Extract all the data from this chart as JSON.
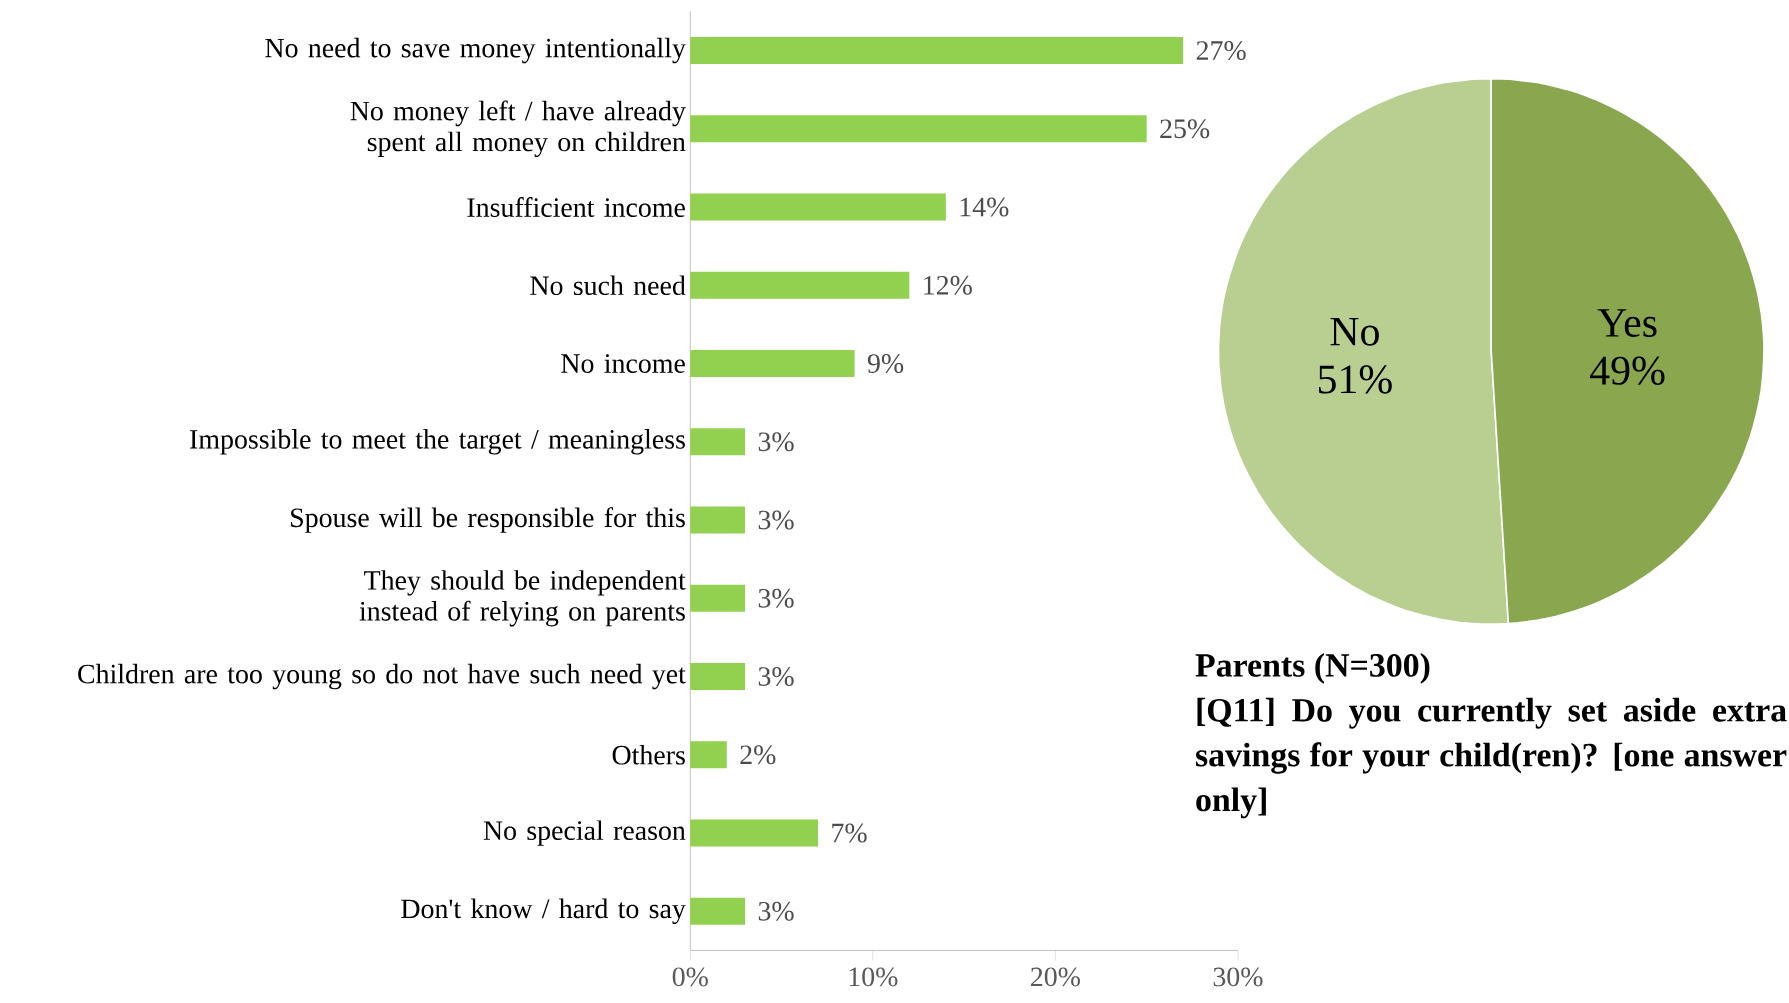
{
  "chart_data": [
    {
      "type": "bar",
      "orientation": "horizontal",
      "categories": [
        "No need to save money intentionally",
        "No money left / have already spent all money on children",
        "Insufficient income",
        "No such need",
        "No income",
        "Impossible to meet the target / meaningless",
        "Spouse will be responsible for this",
        "They should be independent instead of relying on parents",
        "Children are too young so do not have such need yet",
        "Others",
        "No special reason",
        "Don't know / hard to say"
      ],
      "values": [
        27,
        25,
        14,
        12,
        9,
        3,
        3,
        3,
        3,
        2,
        7,
        3
      ],
      "value_labels": [
        "27%",
        "25%",
        "14%",
        "12%",
        "9%",
        "3%",
        "3%",
        "3%",
        "3%",
        "2%",
        "7%",
        "3%"
      ],
      "color": "#92d050",
      "xlim": [
        0,
        30
      ],
      "xticks": [
        {
          "value": 0,
          "label": "0%"
        },
        {
          "value": 10,
          "label": "10%"
        },
        {
          "value": 20,
          "label": "20%"
        },
        {
          "value": 30,
          "label": "30%"
        }
      ]
    },
    {
      "type": "pie",
      "categories": [
        "No",
        "Yes"
      ],
      "values": [
        51,
        49
      ],
      "value_labels": [
        "51%",
        "49%"
      ],
      "colors": [
        "#b9cf91",
        "#8aa74f"
      ],
      "annotations": [
        "**Parents (N=300)**",
        "**[Q11] Do you currently set aside extra savings for your child(ren)? [one answer only]**"
      ]
    }
  ]
}
